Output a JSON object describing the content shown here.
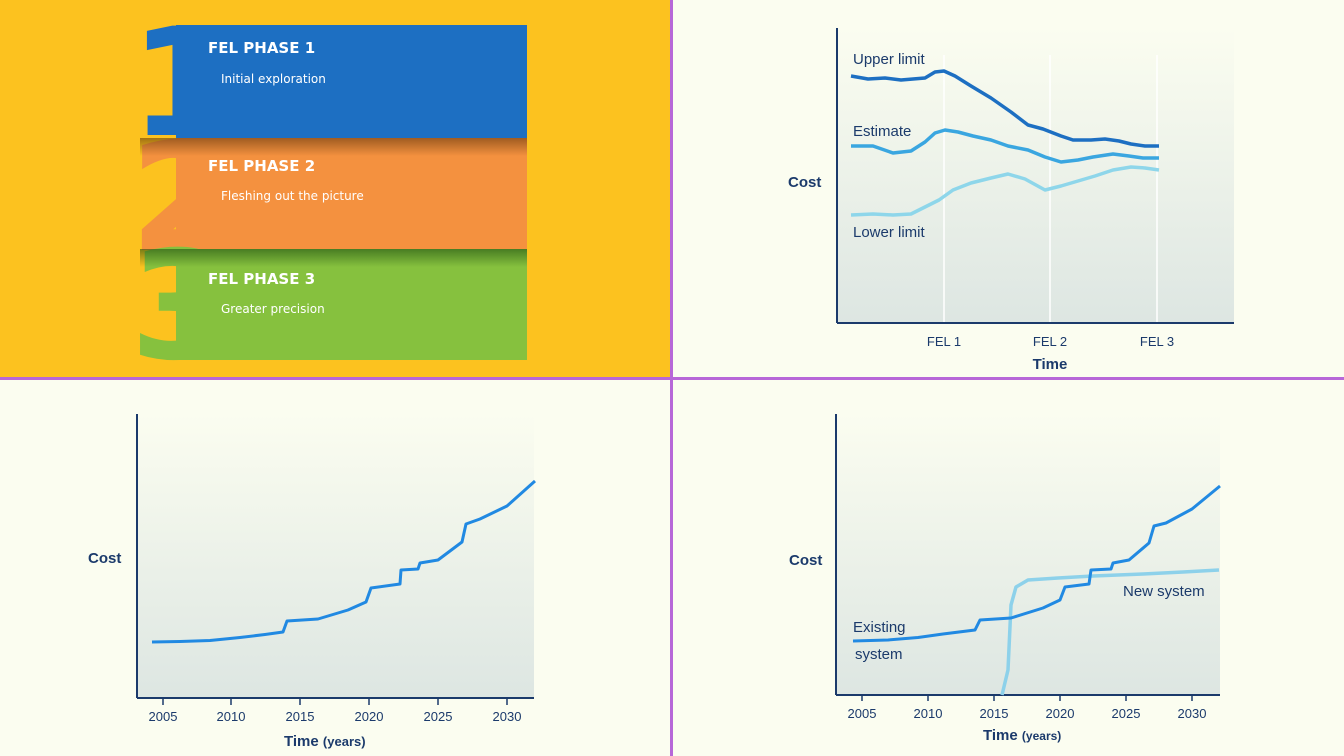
{
  "phases": [
    {
      "number": "1",
      "title": "FEL PHASE 1",
      "subtitle": "Initial exploration",
      "color": "#1d6fc2"
    },
    {
      "number": "2",
      "title": "FEL PHASE 2",
      "subtitle": "Fleshing out the picture",
      "color": "#f4913f"
    },
    {
      "number": "3",
      "title": "FEL PHASE 3",
      "subtitle": "Greater precision",
      "color": "#86c13e"
    }
  ],
  "estimate_chart": {
    "ylabel": "Cost",
    "xlabel": "Time",
    "x_ticks": [
      "FEL 1",
      "FEL 2",
      "FEL 3"
    ],
    "series_labels": [
      "Upper limit",
      "Estimate",
      "Lower limit"
    ]
  },
  "cost_chart": {
    "ylabel": "Cost",
    "xlabel": "Time",
    "xlabel_unit": "(years)",
    "x_ticks": [
      "2005",
      "2010",
      "2015",
      "2020",
      "2025",
      "2030"
    ]
  },
  "comparison_chart": {
    "ylabel": "Cost",
    "xlabel": "Time",
    "xlabel_unit": "(years)",
    "x_ticks": [
      "2005",
      "2010",
      "2015",
      "2020",
      "2025",
      "2030"
    ],
    "series_labels": [
      "Existing",
      "system",
      "New system"
    ]
  },
  "colors": {
    "upper": "#1d6fc2",
    "estimate": "#3aa6e0",
    "lower": "#8ed6ea",
    "cost_line": "#2189e2",
    "new_system": "#8dd1ea",
    "axis": "#1b3a6b",
    "divider": "#b767d8"
  }
}
